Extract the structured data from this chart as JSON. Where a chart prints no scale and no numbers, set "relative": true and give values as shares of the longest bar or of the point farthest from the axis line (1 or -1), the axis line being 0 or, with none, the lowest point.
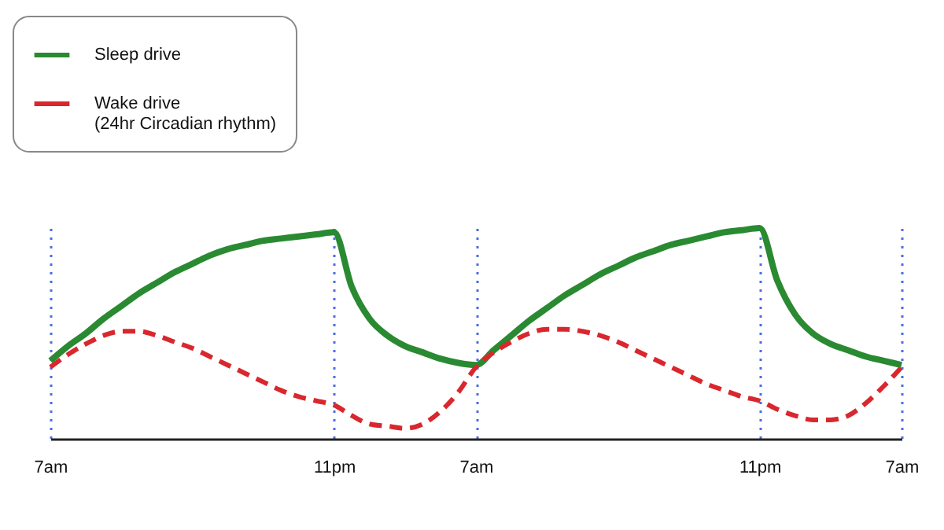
{
  "chart_data": {
    "type": "line",
    "relative": true,
    "categories": [
      "7am",
      null,
      null,
      null,
      null,
      null,
      null,
      null,
      null,
      null,
      null,
      null,
      null,
      null,
      null,
      null,
      "11pm",
      null,
      null,
      null,
      null,
      null,
      null,
      null,
      "7am",
      null,
      null,
      null,
      null,
      null,
      null,
      null,
      null,
      null,
      null,
      null,
      null,
      null,
      null,
      null,
      "11pm",
      null,
      null,
      null,
      null,
      null,
      null,
      null,
      "7am"
    ],
    "legend": "top left",
    "grid": "x",
    "marker": "none",
    "series": [
      {
        "name": "Sleep drive",
        "color": "#2a8a32",
        "line_style": "solid",
        "values": [
          0.37,
          0.44,
          0.5,
          0.57,
          0.63,
          0.69,
          0.74,
          0.79,
          0.83,
          0.87,
          0.9,
          0.92,
          0.94,
          0.95,
          0.96,
          0.97,
          0.98,
          0.72,
          0.57,
          0.49,
          0.44,
          0.41,
          0.38,
          0.36,
          0.35,
          0.42,
          0.49,
          0.56,
          0.62,
          0.68,
          0.73,
          0.78,
          0.82,
          0.86,
          0.89,
          0.92,
          0.94,
          0.96,
          0.98,
          0.99,
          1.0,
          0.75,
          0.59,
          0.5,
          0.45,
          0.42,
          0.39,
          0.37,
          0.35
        ]
      },
      {
        "name": "Wake drive\n(24hr Circadian rhythm)",
        "color": "#d9272e",
        "line_style": "dashed",
        "values": [
          0.34,
          0.4,
          0.45,
          0.49,
          0.51,
          0.51,
          0.49,
          0.46,
          0.43,
          0.39,
          0.35,
          0.31,
          0.27,
          0.23,
          0.2,
          0.18,
          0.16,
          0.11,
          0.07,
          0.06,
          0.05,
          0.07,
          0.13,
          0.22,
          0.34,
          0.41,
          0.46,
          0.5,
          0.52,
          0.52,
          0.51,
          0.49,
          0.46,
          0.42,
          0.38,
          0.34,
          0.3,
          0.26,
          0.23,
          0.2,
          0.18,
          0.14,
          0.11,
          0.09,
          0.09,
          0.11,
          0.17,
          0.25,
          0.34
        ]
      }
    ]
  }
}
